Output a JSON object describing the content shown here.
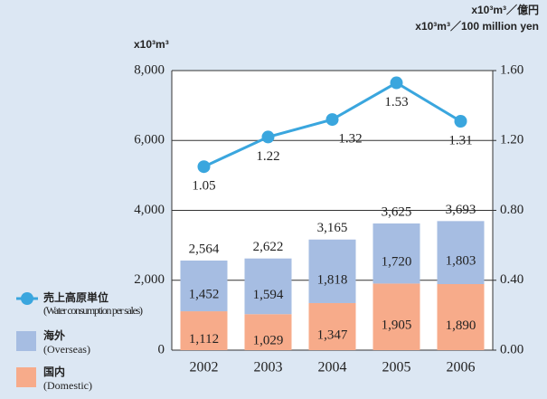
{
  "chart_data": {
    "type": "bar",
    "ylabel": "x10³m³",
    "y2label": [
      "x10³m³／億円",
      "x10³m³／100 million yen"
    ],
    "categories": [
      "2002",
      "2003",
      "2004",
      "2005",
      "2006"
    ],
    "stacked": true,
    "series": [
      {
        "name": "国内",
        "name_en": "(Domestic)",
        "color": "#f7ab8a",
        "values": [
          1112,
          1029,
          1347,
          1905,
          1890
        ],
        "value_labels": [
          "1,112",
          "1,029",
          "1,347",
          "1,905",
          "1,890"
        ]
      },
      {
        "name": "海外",
        "name_en": "(Overseas)",
        "color": "#a6bde2",
        "values": [
          1452,
          1594,
          1818,
          1720,
          1803
        ],
        "value_labels": [
          "1,452",
          "1,594",
          "1,818",
          "1,720",
          "1,803"
        ]
      },
      {
        "name": "売上高原単位",
        "name_en": "(Water consumption per sales)",
        "type": "line",
        "axis": "y2",
        "color": "#3aa6de",
        "values": [
          1.05,
          1.22,
          1.32,
          1.53,
          1.31
        ]
      }
    ],
    "total_labels": [
      "2,564",
      "2,622",
      "3,165",
      "3,625",
      "3,693"
    ],
    "ylim": [
      0,
      8000
    ],
    "yticks": [
      0,
      {
        "value": 2000,
        "label": "2,000"
      },
      {
        "value": 4000,
        "label": "4,000"
      },
      {
        "value": 6000,
        "label": "6,000"
      },
      {
        "value": 8000,
        "label": "8,000"
      }
    ],
    "y2lim": [
      0,
      1.6
    ],
    "y2ticks": [
      {
        "value": 0,
        "label": "0.00"
      },
      {
        "value": 0.4,
        "label": "0.40"
      },
      {
        "value": 0.8,
        "label": "0.80"
      },
      {
        "value": 1.2,
        "label": "1.20"
      },
      {
        "value": 1.6,
        "label": "1.60"
      }
    ],
    "grid": true
  }
}
